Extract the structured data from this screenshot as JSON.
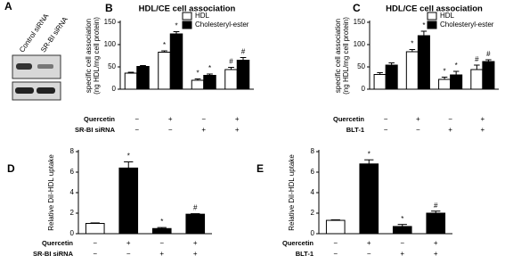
{
  "chart_data": [
    {
      "type": "blot",
      "label": "A",
      "lanes": [
        "Control siRNA",
        "SR-BI siRNA"
      ]
    },
    {
      "type": "bar",
      "label": "B",
      "title": "HDL/CE cell association",
      "ylabel": [
        "specific cell association",
        "(ng HDL/mg cell protein)"
      ],
      "ylim": [
        0,
        150
      ],
      "yticks": [
        0,
        50,
        100,
        150
      ],
      "treatments": [
        {
          "name": "Quercetin",
          "signs": [
            "−",
            "+",
            "−",
            "+"
          ]
        },
        {
          "name": "SR-BI siRNA",
          "signs": [
            "−",
            "−",
            "+",
            "+"
          ]
        }
      ],
      "series": [
        {
          "name": "HDL",
          "color": "#ffffff",
          "values": [
            36,
            83,
            20,
            44
          ],
          "errors": [
            2,
            3,
            3,
            5
          ],
          "markers": [
            null,
            "*",
            "*",
            "#"
          ]
        },
        {
          "name": "Cholesteryl-ester",
          "color": "#000000",
          "values": [
            51,
            124,
            31,
            65
          ],
          "errors": [
            2,
            5,
            3,
            6
          ],
          "markers": [
            null,
            "*",
            "*",
            "#"
          ]
        }
      ]
    },
    {
      "type": "bar",
      "label": "C",
      "title": "HDL/CE cell association",
      "ylabel": [
        "specific cell association",
        "(ng HDL/mg cell protein)"
      ],
      "ylim": [
        0,
        150
      ],
      "yticks": [
        0,
        50,
        100,
        150
      ],
      "treatments": [
        {
          "name": "Quercetin",
          "signs": [
            "−",
            "+",
            "−",
            "+"
          ]
        },
        {
          "name": "BLT-1",
          "signs": [
            "−",
            "−",
            "+",
            "+"
          ]
        }
      ],
      "series": [
        {
          "name": "HDL",
          "color": "#ffffff",
          "values": [
            33,
            84,
            22,
            44
          ],
          "errors": [
            4,
            5,
            5,
            10
          ],
          "markers": [
            null,
            "*",
            "*",
            "#"
          ]
        },
        {
          "name": "Cholesteryl-ester",
          "color": "#000000",
          "values": [
            54,
            120,
            32,
            62
          ],
          "errors": [
            5,
            10,
            8,
            4
          ],
          "markers": [
            null,
            "*",
            "*",
            "#"
          ]
        }
      ]
    },
    {
      "type": "bar",
      "label": "D",
      "ylabel": [
        "Relative DiI-HDL uptake"
      ],
      "ylim": [
        0,
        8
      ],
      "yticks": [
        0,
        2,
        4,
        6,
        8
      ],
      "treatments": [
        {
          "name": "Quercetin",
          "signs": [
            "−",
            "+",
            "−",
            "+"
          ]
        },
        {
          "name": "SR-BI siRNA",
          "signs": [
            "−",
            "−",
            "+",
            "+"
          ]
        }
      ],
      "series": [
        {
          "colors": [
            "#ffffff",
            "#000000",
            "#000000",
            "#000000"
          ],
          "values": [
            1.0,
            6.4,
            0.5,
            1.9
          ],
          "errors": [
            0.05,
            0.6,
            0.1,
            0.05
          ],
          "markers": [
            null,
            "*",
            "*",
            "#"
          ]
        }
      ]
    },
    {
      "type": "bar",
      "label": "E",
      "ylabel": [
        "Relative DiI-HDL uptake"
      ],
      "ylim": [
        0,
        8
      ],
      "yticks": [
        0,
        2,
        4,
        6,
        8
      ],
      "treatments": [
        {
          "name": "Quercetin",
          "signs": [
            "−",
            "+",
            "−",
            "+"
          ]
        },
        {
          "name": "BLT-1",
          "signs": [
            "−",
            "−",
            "+",
            "+"
          ]
        }
      ],
      "series": [
        {
          "colors": [
            "#ffffff",
            "#000000",
            "#000000",
            "#000000"
          ],
          "values": [
            1.3,
            6.8,
            0.7,
            2.0
          ],
          "errors": [
            0.05,
            0.4,
            0.2,
            0.2
          ],
          "markers": [
            null,
            "*",
            "*",
            "#"
          ]
        }
      ]
    }
  ]
}
